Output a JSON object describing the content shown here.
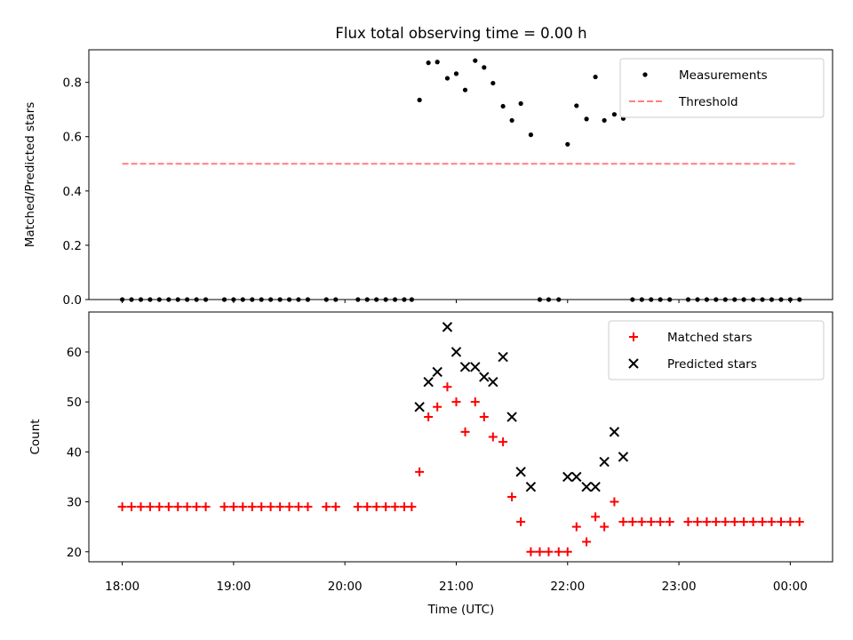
{
  "chart_data": {
    "title": "Flux total observing time = 0.00 h",
    "xlabel": "Time (UTC)",
    "x_ticks": [
      "18:00",
      "19:00",
      "20:00",
      "21:00",
      "22:00",
      "23:00",
      "00:00"
    ],
    "x_tick_hours": [
      18,
      19,
      20,
      21,
      22,
      23,
      24
    ],
    "xlim": [
      17.7,
      24.38
    ],
    "colors": {
      "measurements": "#000000",
      "threshold": "#ff7f7f",
      "matched": "#ff0000",
      "predicted": "#000000"
    },
    "panels": [
      {
        "type": "scatter",
        "ylabel": "Matched/Predicted stars",
        "ylim": [
          0,
          0.92
        ],
        "y_ticks": [
          "0.0",
          "0.2",
          "0.4",
          "0.6",
          "0.8"
        ],
        "y_tick_values": [
          0,
          0.2,
          0.4,
          0.6,
          0.8
        ],
        "legend": "top-right",
        "series": [
          {
            "name": "Measurements",
            "type": "scatter",
            "points": [
              [
                18.0,
                0
              ],
              [
                18.083,
                0
              ],
              [
                18.167,
                0
              ],
              [
                18.25,
                0
              ],
              [
                18.333,
                0
              ],
              [
                18.417,
                0
              ],
              [
                18.5,
                0
              ],
              [
                18.583,
                0
              ],
              [
                18.667,
                0
              ],
              [
                18.75,
                0
              ],
              [
                18.917,
                0
              ],
              [
                19.0,
                0
              ],
              [
                19.083,
                0
              ],
              [
                19.167,
                0
              ],
              [
                19.25,
                0
              ],
              [
                19.333,
                0
              ],
              [
                19.417,
                0
              ],
              [
                19.5,
                0
              ],
              [
                19.583,
                0
              ],
              [
                19.667,
                0
              ],
              [
                19.833,
                0
              ],
              [
                19.917,
                0
              ],
              [
                20.117,
                0
              ],
              [
                20.2,
                0
              ],
              [
                20.283,
                0
              ],
              [
                20.367,
                0
              ],
              [
                20.45,
                0
              ],
              [
                20.533,
                0
              ],
              [
                20.6,
                0
              ],
              [
                20.67,
                0.735
              ],
              [
                20.75,
                0.872
              ],
              [
                20.83,
                0.875
              ],
              [
                20.92,
                0.815
              ],
              [
                21.0,
                0.832
              ],
              [
                21.08,
                0.772
              ],
              [
                21.17,
                0.88
              ],
              [
                21.25,
                0.855
              ],
              [
                21.33,
                0.797
              ],
              [
                21.42,
                0.712
              ],
              [
                21.5,
                0.66
              ],
              [
                21.58,
                0.722
              ],
              [
                21.67,
                0.607
              ],
              [
                21.75,
                0
              ],
              [
                21.83,
                0
              ],
              [
                21.92,
                0
              ],
              [
                22.0,
                0.572
              ],
              [
                22.08,
                0.714
              ],
              [
                22.17,
                0.665
              ],
              [
                22.25,
                0.82
              ],
              [
                22.33,
                0.66
              ],
              [
                22.42,
                0.682
              ],
              [
                22.5,
                0.667
              ],
              [
                22.583,
                0
              ],
              [
                22.667,
                0
              ],
              [
                22.75,
                0
              ],
              [
                22.833,
                0
              ],
              [
                22.917,
                0
              ],
              [
                23.083,
                0
              ],
              [
                23.167,
                0
              ],
              [
                23.25,
                0
              ],
              [
                23.333,
                0
              ],
              [
                23.417,
                0
              ],
              [
                23.5,
                0
              ],
              [
                23.583,
                0
              ],
              [
                23.667,
                0
              ],
              [
                23.75,
                0
              ],
              [
                23.833,
                0
              ],
              [
                23.917,
                0
              ],
              [
                24.0,
                0
              ],
              [
                24.083,
                0
              ]
            ]
          },
          {
            "name": "Threshold",
            "type": "dashed-line",
            "x": [
              18.0,
              24.05
            ],
            "y": [
              0.5,
              0.5
            ]
          }
        ]
      },
      {
        "type": "scatter",
        "ylabel": "Count",
        "ylim": [
          18,
          68
        ],
        "y_ticks": [
          "20",
          "30",
          "40",
          "50",
          "60"
        ],
        "y_tick_values": [
          20,
          30,
          40,
          50,
          60
        ],
        "legend": "top-right",
        "series": [
          {
            "name": "Matched stars",
            "marker": "plus",
            "points": [
              [
                18.0,
                29
              ],
              [
                18.083,
                29
              ],
              [
                18.167,
                29
              ],
              [
                18.25,
                29
              ],
              [
                18.333,
                29
              ],
              [
                18.417,
                29
              ],
              [
                18.5,
                29
              ],
              [
                18.583,
                29
              ],
              [
                18.667,
                29
              ],
              [
                18.75,
                29
              ],
              [
                18.917,
                29
              ],
              [
                19.0,
                29
              ],
              [
                19.083,
                29
              ],
              [
                19.167,
                29
              ],
              [
                19.25,
                29
              ],
              [
                19.333,
                29
              ],
              [
                19.417,
                29
              ],
              [
                19.5,
                29
              ],
              [
                19.583,
                29
              ],
              [
                19.667,
                29
              ],
              [
                19.833,
                29
              ],
              [
                19.917,
                29
              ],
              [
                20.117,
                29
              ],
              [
                20.2,
                29
              ],
              [
                20.283,
                29
              ],
              [
                20.367,
                29
              ],
              [
                20.45,
                29
              ],
              [
                20.533,
                29
              ],
              [
                20.6,
                29
              ],
              [
                20.67,
                36
              ],
              [
                20.75,
                47
              ],
              [
                20.83,
                49
              ],
              [
                20.92,
                53
              ],
              [
                21.0,
                50
              ],
              [
                21.08,
                44
              ],
              [
                21.17,
                50
              ],
              [
                21.25,
                47
              ],
              [
                21.33,
                43
              ],
              [
                21.42,
                42
              ],
              [
                21.5,
                31
              ],
              [
                21.58,
                26
              ],
              [
                21.67,
                20
              ],
              [
                21.75,
                20
              ],
              [
                21.83,
                20
              ],
              [
                21.92,
                20
              ],
              [
                22.0,
                20
              ],
              [
                22.08,
                25
              ],
              [
                22.17,
                22
              ],
              [
                22.25,
                27
              ],
              [
                22.33,
                25
              ],
              [
                22.42,
                30
              ],
              [
                22.5,
                26
              ],
              [
                22.583,
                26
              ],
              [
                22.667,
                26
              ],
              [
                22.75,
                26
              ],
              [
                22.833,
                26
              ],
              [
                22.917,
                26
              ],
              [
                23.083,
                26
              ],
              [
                23.167,
                26
              ],
              [
                23.25,
                26
              ],
              [
                23.333,
                26
              ],
              [
                23.417,
                26
              ],
              [
                23.5,
                26
              ],
              [
                23.583,
                26
              ],
              [
                23.667,
                26
              ],
              [
                23.75,
                26
              ],
              [
                23.833,
                26
              ],
              [
                23.917,
                26
              ],
              [
                24.0,
                26
              ],
              [
                24.083,
                26
              ]
            ]
          },
          {
            "name": "Predicted stars",
            "marker": "x",
            "points": [
              [
                20.67,
                49
              ],
              [
                20.75,
                54
              ],
              [
                20.83,
                56
              ],
              [
                20.92,
                65
              ],
              [
                21.0,
                60
              ],
              [
                21.08,
                57
              ],
              [
                21.17,
                57
              ],
              [
                21.25,
                55
              ],
              [
                21.33,
                54
              ],
              [
                21.42,
                59
              ],
              [
                21.5,
                47
              ],
              [
                21.58,
                36
              ],
              [
                21.67,
                33
              ],
              [
                22.0,
                35
              ],
              [
                22.08,
                35
              ],
              [
                22.17,
                33
              ],
              [
                22.25,
                33
              ],
              [
                22.33,
                38
              ],
              [
                22.42,
                44
              ],
              [
                22.5,
                39
              ]
            ]
          }
        ]
      }
    ]
  }
}
